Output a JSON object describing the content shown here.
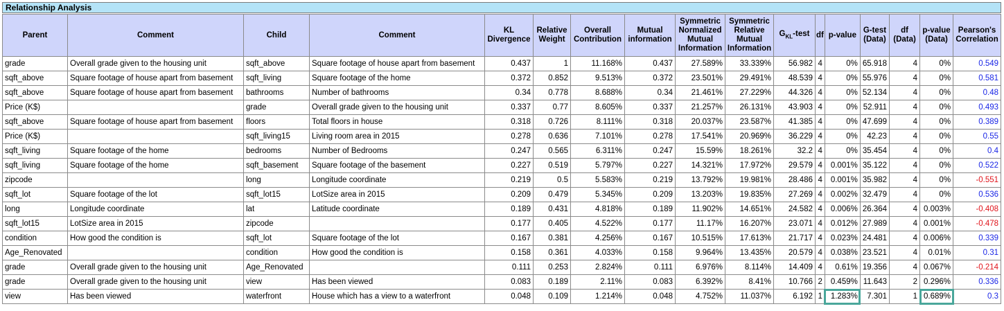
{
  "title": "Relationship Analysis",
  "headers": {
    "parent": "Parent",
    "comment1": "Comment",
    "child": "Child",
    "comment2": "Comment",
    "kl": [
      "KL",
      "Divergence"
    ],
    "rw": [
      "Relative",
      "Weight"
    ],
    "oc": [
      "Overall",
      "Contribution"
    ],
    "mi": [
      "Mutual",
      "information"
    ],
    "snmi": [
      "Symmetric",
      "Normalized",
      "Mutual",
      "Information"
    ],
    "srmi": [
      "Symmetric",
      "Relative",
      "Mutual",
      "Information"
    ],
    "gkl_main": "G",
    "gkl_sub": "KL",
    "gkl_suffix": "-test",
    "df": "df",
    "pvalue": "p-value",
    "gtest_data": [
      "G-test",
      "(Data)"
    ],
    "df_data": [
      "df",
      "(Data)"
    ],
    "pvalue_data": [
      "p-value",
      "(Data)"
    ],
    "pearson": [
      "Pearson's",
      "Correlation"
    ]
  },
  "rows": [
    {
      "parent": "grade",
      "comment1": "Overall grade given to the housing unit",
      "child": "sqft_above",
      "comment2": "Square footage of house apart from basement",
      "kl": "0.437",
      "rw": "1",
      "oc": "11.168%",
      "mi": "0.437",
      "snmi": "27.589%",
      "srmi": "33.339%",
      "gkl": "56.982",
      "df": "4",
      "pvalue": "0%",
      "gtest": "65.918",
      "dfd": "4",
      "pvd": "0%",
      "pearson": "0.549"
    },
    {
      "parent": "sqft_above",
      "comment1": "Square footage of house apart from basement",
      "child": "sqft_living",
      "comment2": "Square footage of the home",
      "kl": "0.372",
      "rw": "0.852",
      "oc": "9.513%",
      "mi": "0.372",
      "snmi": "23.501%",
      "srmi": "29.491%",
      "gkl": "48.539",
      "df": "4",
      "pvalue": "0%",
      "gtest": "55.976",
      "dfd": "4",
      "pvd": "0%",
      "pearson": "0.581"
    },
    {
      "parent": "sqft_above",
      "comment1": "Square footage of house apart from basement",
      "child": "bathrooms",
      "comment2": "Number of bathrooms",
      "kl": "0.34",
      "rw": "0.778",
      "oc": "8.688%",
      "mi": "0.34",
      "snmi": "21.461%",
      "srmi": "27.229%",
      "gkl": "44.326",
      "df": "4",
      "pvalue": "0%",
      "gtest": "52.134",
      "dfd": "4",
      "pvd": "0%",
      "pearson": "0.48"
    },
    {
      "parent": "Price (K$)",
      "comment1": "",
      "child": "grade",
      "comment2": "Overall grade given to the housing unit",
      "kl": "0.337",
      "rw": "0.77",
      "oc": "8.605%",
      "mi": "0.337",
      "snmi": "21.257%",
      "srmi": "26.131%",
      "gkl": "43.903",
      "df": "4",
      "pvalue": "0%",
      "gtest": "52.911",
      "dfd": "4",
      "pvd": "0%",
      "pearson": "0.493"
    },
    {
      "parent": "sqft_above",
      "comment1": "Square footage of house apart from basement",
      "child": "floors",
      "comment2": "Total floors in house",
      "kl": "0.318",
      "rw": "0.726",
      "oc": "8.111%",
      "mi": "0.318",
      "snmi": "20.037%",
      "srmi": "23.587%",
      "gkl": "41.385",
      "df": "4",
      "pvalue": "0%",
      "gtest": "47.699",
      "dfd": "4",
      "pvd": "0%",
      "pearson": "0.389"
    },
    {
      "parent": "Price (K$)",
      "comment1": "",
      "child": "sqft_living15",
      "comment2": "Living room area in 2015",
      "kl": "0.278",
      "rw": "0.636",
      "oc": "7.101%",
      "mi": "0.278",
      "snmi": "17.541%",
      "srmi": "20.969%",
      "gkl": "36.229",
      "df": "4",
      "pvalue": "0%",
      "gtest": "42.23",
      "dfd": "4",
      "pvd": "0%",
      "pearson": "0.55"
    },
    {
      "parent": "sqft_living",
      "comment1": "Square footage of the home",
      "child": "bedrooms",
      "comment2": "Number of Bedrooms",
      "kl": "0.247",
      "rw": "0.565",
      "oc": "6.311%",
      "mi": "0.247",
      "snmi": "15.59%",
      "srmi": "18.261%",
      "gkl": "32.2",
      "df": "4",
      "pvalue": "0%",
      "gtest": "35.454",
      "dfd": "4",
      "pvd": "0%",
      "pearson": "0.4"
    },
    {
      "parent": "sqft_living",
      "comment1": "Square footage of the home",
      "child": "sqft_basement",
      "comment2": "Square footage of the basement",
      "kl": "0.227",
      "rw": "0.519",
      "oc": "5.797%",
      "mi": "0.227",
      "snmi": "14.321%",
      "srmi": "17.972%",
      "gkl": "29.579",
      "df": "4",
      "pvalue": "0.001%",
      "gtest": "35.122",
      "dfd": "4",
      "pvd": "0%",
      "pearson": "0.522"
    },
    {
      "parent": "zipcode",
      "comment1": "",
      "child": "long",
      "comment2": "Longitude coordinate",
      "kl": "0.219",
      "rw": "0.5",
      "oc": "5.583%",
      "mi": "0.219",
      "snmi": "13.792%",
      "srmi": "19.981%",
      "gkl": "28.486",
      "df": "4",
      "pvalue": "0.001%",
      "gtest": "35.982",
      "dfd": "4",
      "pvd": "0%",
      "pearson": "-0.551"
    },
    {
      "parent": "sqft_lot",
      "comment1": "Square footage of the lot",
      "child": "sqft_lot15",
      "comment2": "LotSize area in 2015",
      "kl": "0.209",
      "rw": "0.479",
      "oc": "5.345%",
      "mi": "0.209",
      "snmi": "13.203%",
      "srmi": "19.835%",
      "gkl": "27.269",
      "df": "4",
      "pvalue": "0.002%",
      "gtest": "32.479",
      "dfd": "4",
      "pvd": "0%",
      "pearson": "0.536"
    },
    {
      "parent": "long",
      "comment1": "Longitude coordinate",
      "child": "lat",
      "comment2": "Latitude coordinate",
      "kl": "0.189",
      "rw": "0.431",
      "oc": "4.818%",
      "mi": "0.189",
      "snmi": "11.902%",
      "srmi": "14.651%",
      "gkl": "24.582",
      "df": "4",
      "pvalue": "0.006%",
      "gtest": "26.364",
      "dfd": "4",
      "pvd": "0.003%",
      "pearson": "-0.408"
    },
    {
      "parent": "sqft_lot15",
      "comment1": "LotSize area in 2015",
      "child": "zipcode",
      "comment2": "",
      "kl": "0.177",
      "rw": "0.405",
      "oc": "4.522%",
      "mi": "0.177",
      "snmi": "11.17%",
      "srmi": "16.207%",
      "gkl": "23.071",
      "df": "4",
      "pvalue": "0.012%",
      "gtest": "27.989",
      "dfd": "4",
      "pvd": "0.001%",
      "pearson": "-0.478"
    },
    {
      "parent": "condition",
      "comment1": "How good the condition is",
      "child": "sqft_lot",
      "comment2": "Square footage of the lot",
      "kl": "0.167",
      "rw": "0.381",
      "oc": "4.256%",
      "mi": "0.167",
      "snmi": "10.515%",
      "srmi": "17.613%",
      "gkl": "21.717",
      "df": "4",
      "pvalue": "0.023%",
      "gtest": "24.481",
      "dfd": "4",
      "pvd": "0.006%",
      "pearson": "0.339"
    },
    {
      "parent": "Age_Renovated",
      "comment1": "",
      "child": "condition",
      "comment2": "How good the condition is",
      "kl": "0.158",
      "rw": "0.361",
      "oc": "4.033%",
      "mi": "0.158",
      "snmi": "9.964%",
      "srmi": "13.435%",
      "gkl": "20.579",
      "df": "4",
      "pvalue": "0.038%",
      "gtest": "23.521",
      "dfd": "4",
      "pvd": "0.01%",
      "pearson": "0.31"
    },
    {
      "parent": "grade",
      "comment1": "Overall grade given to the housing unit",
      "child": "Age_Renovated",
      "comment2": "",
      "kl": "0.111",
      "rw": "0.253",
      "oc": "2.824%",
      "mi": "0.111",
      "snmi": "6.976%",
      "srmi": "8.114%",
      "gkl": "14.409",
      "df": "4",
      "pvalue": "0.61%",
      "gtest": "19.356",
      "dfd": "4",
      "pvd": "0.067%",
      "pearson": "-0.214"
    },
    {
      "parent": "grade",
      "comment1": "Overall grade given to the housing unit",
      "child": "view",
      "comment2": "Has been viewed",
      "kl": "0.083",
      "rw": "0.189",
      "oc": "2.11%",
      "mi": "0.083",
      "snmi": "6.392%",
      "srmi": "8.41%",
      "gkl": "10.766",
      "df": "2",
      "pvalue": "0.459%",
      "gtest": "11.643",
      "dfd": "2",
      "pvd": "0.296%",
      "pearson": "0.336"
    },
    {
      "parent": "view",
      "comment1": "Has been viewed",
      "child": "waterfront",
      "comment2": "House which has a view to a waterfront",
      "kl": "0.048",
      "rw": "0.109",
      "oc": "1.214%",
      "mi": "0.048",
      "snmi": "4.752%",
      "srmi": "11.037%",
      "gkl": "6.192",
      "df": "1",
      "pvalue": "1.283%",
      "gtest": "7.301",
      "dfd": "1",
      "pvd": "0.689%",
      "pearson": "0.3",
      "highlight": true
    }
  ],
  "colors": {
    "title_bg": "#b4e3f7",
    "header_bg": "#cfd5fb",
    "positive_correlation": "#1a26e6",
    "negative_correlation": "#e0141b",
    "highlight_border": "#4aa79b"
  }
}
